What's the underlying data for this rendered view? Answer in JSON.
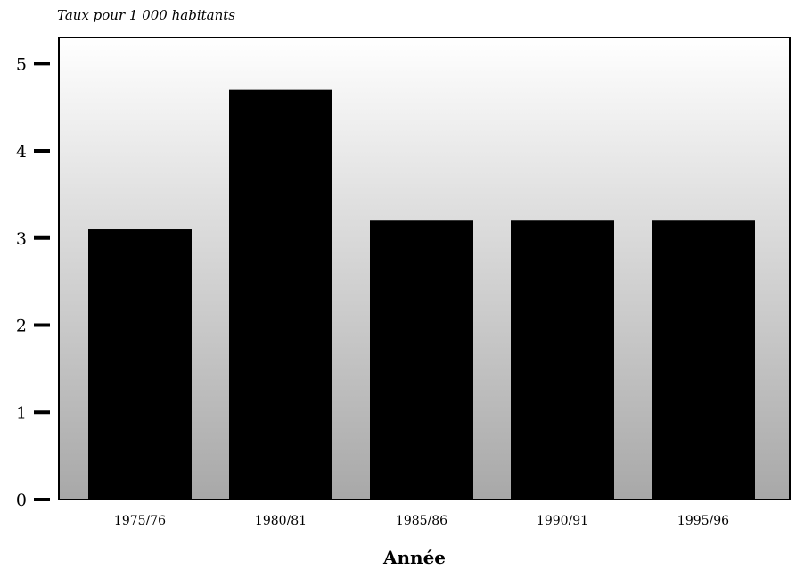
{
  "chart_data": {
    "type": "bar",
    "title": "",
    "ylabel": "Taux pour 1 000 habitants",
    "xlabel": "Année",
    "categories": [
      "1975/76",
      "1980/81",
      "1985/86",
      "1990/91",
      "1995/96"
    ],
    "values": [
      3.1,
      4.7,
      3.2,
      3.2,
      3.2
    ],
    "ylim": [
      0,
      5.3
    ],
    "yticks": [
      0,
      1,
      2,
      3,
      4,
      5
    ],
    "grid": false,
    "colors": {
      "bar": "#000000",
      "frame": "#000000",
      "gradient_top": "#ffffff",
      "gradient_bottom": "#a8a8a8"
    }
  }
}
